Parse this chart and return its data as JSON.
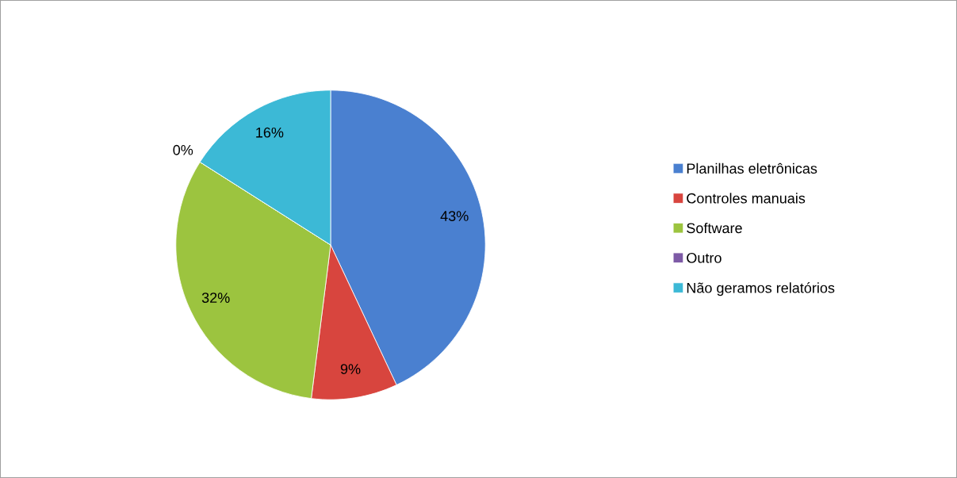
{
  "chart_data": {
    "type": "pie",
    "categories": [
      "Planilhas eletrônicas",
      "Controles manuais",
      "Software",
      "Outro",
      "Não geramos relatórios"
    ],
    "values": [
      43,
      9,
      32,
      0,
      16
    ],
    "colors": [
      "#4a80d0",
      "#d8453e",
      "#9cc43f",
      "#7d5aa6",
      "#3cb9d6"
    ],
    "value_labels": [
      "43%",
      "9%",
      "32%",
      "0%",
      "16%"
    ],
    "legend": "right"
  }
}
